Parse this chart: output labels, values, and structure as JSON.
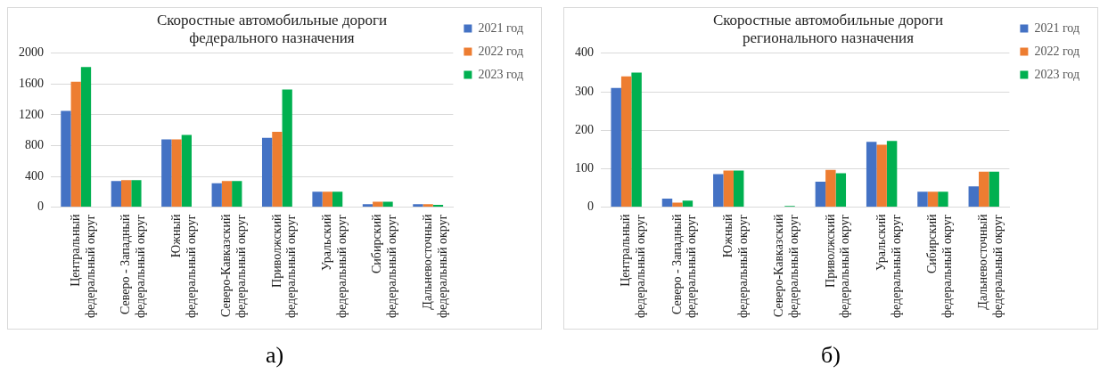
{
  "chart_data": [
    {
      "type": "bar",
      "title": "Скоростные автомобильные дороги\nфедерального назначения",
      "categories": [
        "Центральный\nфедеральный округ",
        "Северо - Западный\nфедеральный округ",
        "Южный\nфедеральный округ",
        "Северо-Кавказский\nфедеральный округ",
        "Приволжский\nфедеральный округ",
        "Уральский\nфедеральный округ",
        "Сибирский\nфедеральный округ",
        "Дальневосточный\nфедеральный округ"
      ],
      "series": [
        {
          "name": "2021 год",
          "color": "#4472c4",
          "values": [
            1250,
            340,
            880,
            310,
            900,
            200,
            40,
            40
          ]
        },
        {
          "name": "2022 год",
          "color": "#ed7d31",
          "values": [
            1630,
            350,
            880,
            340,
            980,
            200,
            70,
            40
          ]
        },
        {
          "name": "2023 год",
          "color": "#00b050",
          "values": [
            1820,
            350,
            940,
            340,
            1530,
            200,
            70,
            30
          ]
        }
      ],
      "ylim": [
        0,
        2000
      ],
      "yticks": [
        0,
        400,
        800,
        1200,
        1600,
        2000
      ],
      "grid": "y",
      "legend": "top right",
      "annotations": [
        "а)"
      ]
    },
    {
      "type": "bar",
      "title": "Скоростные автомобильные дороги\nрегионального назначения",
      "categories": [
        "Центральный\nфедеральный округ",
        "Северо - Западный\nфедеральный округ",
        "Южный\nфедеральный округ",
        "Северо-Кавказский\nфедеральный округ",
        "Приволжский\nфедеральный округ",
        "Уральский\nфедеральный округ",
        "Сибирский\nфедеральный округ",
        "Дальневосточный\nфедеральный округ"
      ],
      "series": [
        {
          "name": "2021 год",
          "color": "#4472c4",
          "values": [
            310,
            22,
            86,
            0,
            66,
            170,
            40,
            54
          ]
        },
        {
          "name": "2022 год",
          "color": "#ed7d31",
          "values": [
            340,
            12,
            95,
            0,
            97,
            162,
            40,
            92
          ]
        },
        {
          "name": "2023 год",
          "color": "#00b050",
          "values": [
            350,
            17,
            95,
            3,
            88,
            172,
            40,
            92
          ]
        }
      ],
      "ylim": [
        0,
        400
      ],
      "yticks": [
        0,
        100,
        200,
        300,
        400
      ],
      "grid": "y",
      "legend": "top right",
      "annotations": [
        "б)"
      ]
    }
  ]
}
